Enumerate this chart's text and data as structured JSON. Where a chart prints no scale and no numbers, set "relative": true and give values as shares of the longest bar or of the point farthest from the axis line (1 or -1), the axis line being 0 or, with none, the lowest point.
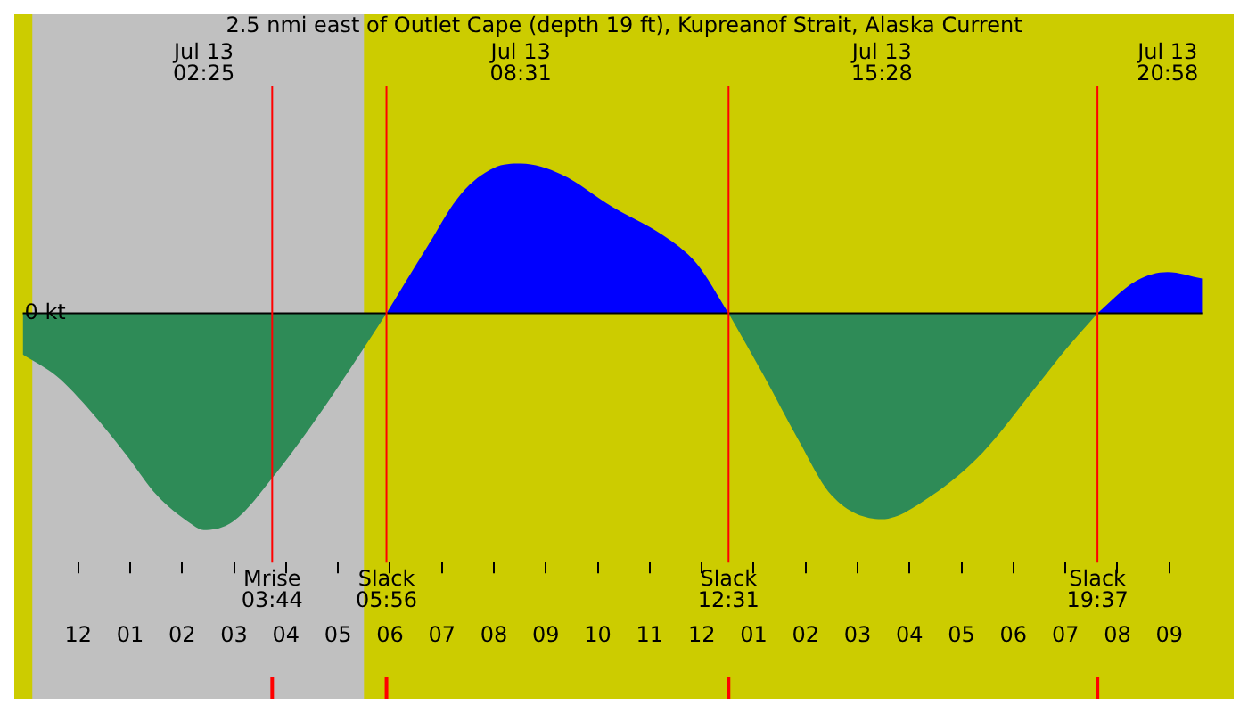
{
  "chart_data": {
    "type": "area",
    "title": "2.5 nmi east of Outlet Cape (depth 19 ft), Kupreanof Strait, Alaska Current",
    "relative": true,
    "series": [
      {
        "color": "#2e8b57",
        "x": [
          "--07-12T22:56",
          "--07-12T23:35",
          "--07-13T00:14",
          "--07-13T00:53",
          "--07-13T01:31",
          "--07-13T02:10",
          "--07-13T02:25",
          "--07-13T02:59",
          "--07-13T03:48",
          "--07-13T04:36",
          "--07-13T05:25",
          "--07-13T05:56"
        ],
        "values": [
          -0.19,
          -0.29,
          -0.45,
          -0.64,
          -0.84,
          -0.97,
          -1,
          -0.96,
          -0.74,
          -0.48,
          -0.19,
          0
        ]
      },
      {
        "color": "#0000ff",
        "x": [
          "--07-13T05:56",
          "--07-13T06:42",
          "--07-13T07:22",
          "--07-13T08:00",
          "--07-13T08:31",
          "--07-13T09:18",
          "--07-13T10:17",
          "--07-13T11:15",
          "--07-13T11:54",
          "--07-13T12:31"
        ],
        "values": [
          0,
          0.3,
          0.55,
          0.67,
          0.69,
          0.64,
          0.49,
          0.36,
          0.23,
          0
        ]
      },
      {
        "color": "#2e8b57",
        "x": [
          "--07-13T12:31",
          "--07-13T13:12",
          "--07-13T13:51",
          "--07-13T14:30",
          "--07-13T15:28",
          "--07-13T16:26",
          "--07-13T17:25",
          "--07-13T18:24",
          "--07-13T19:02",
          "--07-13T19:37"
        ],
        "values": [
          0,
          -0.29,
          -0.58,
          -0.84,
          -0.95,
          -0.84,
          -0.64,
          -0.35,
          -0.16,
          0
        ]
      },
      {
        "color": "#0000ff",
        "x": [
          "--07-13T19:37",
          "--07-13T20:22",
          "--07-13T20:58",
          "--07-13T21:38"
        ],
        "values": [
          0,
          0.15,
          0.19,
          0.16
        ]
      }
    ],
    "xlim": [
      "--07-12T22:56",
      "--07-13T21:38"
    ],
    "xticks": [
      {
        "value": "--07-13T00:00",
        "label": "12"
      },
      {
        "value": "--07-13T01:00",
        "label": "01"
      },
      {
        "value": "--07-13T02:00",
        "label": "02"
      },
      {
        "value": "--07-13T03:00",
        "label": "03"
      },
      {
        "value": "--07-13T04:00",
        "label": "04"
      },
      {
        "value": "--07-13T05:00",
        "label": "05"
      },
      {
        "value": "--07-13T06:00",
        "label": "06"
      },
      {
        "value": "--07-13T07:00",
        "label": "07"
      },
      {
        "value": "--07-13T08:00",
        "label": "08"
      },
      {
        "value": "--07-13T09:00",
        "label": "09"
      },
      {
        "value": "--07-13T10:00",
        "label": "10"
      },
      {
        "value": "--07-13T11:00",
        "label": "11"
      },
      {
        "value": "--07-13T12:00",
        "label": "12"
      },
      {
        "value": "--07-13T13:00",
        "label": "01"
      },
      {
        "value": "--07-13T14:00",
        "label": "02"
      },
      {
        "value": "--07-13T15:00",
        "label": "03"
      },
      {
        "value": "--07-13T16:00",
        "label": "04"
      },
      {
        "value": "--07-13T17:00",
        "label": "05"
      },
      {
        "value": "--07-13T18:00",
        "label": "06"
      },
      {
        "value": "--07-13T19:00",
        "label": "07"
      },
      {
        "value": "--07-13T20:00",
        "label": "08"
      },
      {
        "value": "--07-13T21:00",
        "label": "09"
      }
    ],
    "bands": [
      {
        "axis": "x",
        "from": "--07-12T23:07",
        "to": "--07-13T05:30",
        "color": "#c0c0c0"
      }
    ],
    "x2lim": [
      "--07-12T22:56",
      "--07-13T21:38"
    ],
    "x2ticks": [
      {
        "value": "--07-13T02:25",
        "label": "Jul 13\n02:25"
      },
      {
        "value": "--07-13T08:31",
        "label": "Jul 13\n08:31"
      },
      {
        "value": "--07-13T15:28",
        "label": "Jul 13\n15:28"
      },
      {
        "value": "--07-13T20:58",
        "label": "Jul 13\n20:58"
      }
    ],
    "ref_lines": [
      {
        "axis": "x",
        "value": "--07-13T03:44",
        "label": "Mrise\n03:44",
        "color": "#ff0000"
      },
      {
        "axis": "x",
        "value": "--07-13T05:56",
        "label": "Slack\n05:56",
        "color": "#ff0000"
      },
      {
        "axis": "x",
        "value": "--07-13T12:31",
        "label": "Slack\n12:31",
        "color": "#ff0000"
      },
      {
        "axis": "x",
        "value": "--07-13T19:37",
        "label": "Slack\n19:37",
        "color": "#ff0000"
      }
    ],
    "annotations": [
      {
        "text": "0 kt",
        "y": 0
      }
    ],
    "legend": false,
    "marker": "none"
  }
}
